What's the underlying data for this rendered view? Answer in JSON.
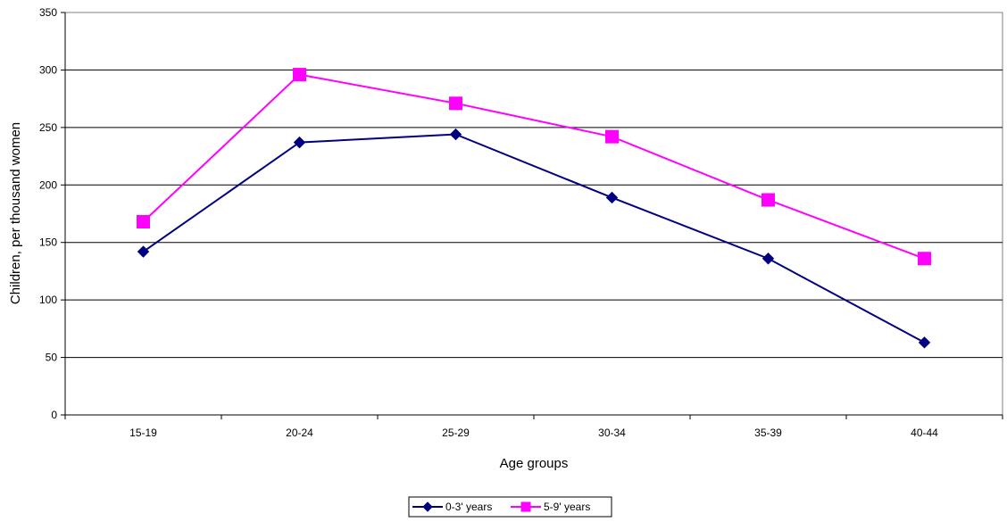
{
  "chart_data": {
    "type": "line",
    "title": "",
    "xlabel": "Age groups",
    "ylabel": "Children, per thousand women",
    "categories": [
      "15-19",
      "20-24",
      "25-29",
      "30-34",
      "35-39",
      "40-44"
    ],
    "ylim": [
      0,
      350
    ],
    "yticks": [
      0,
      50,
      100,
      150,
      200,
      250,
      300,
      350
    ],
    "grid": "horizontal",
    "legend_position": "bottom",
    "series": [
      {
        "name": "0-3' years",
        "color": "#000080",
        "marker": "diamond",
        "values": [
          142,
          237,
          244,
          189,
          136,
          63
        ]
      },
      {
        "name": "5-9' years",
        "color": "#FF00FF",
        "marker": "square",
        "values": [
          168,
          296,
          271,
          242,
          187,
          136
        ]
      }
    ]
  }
}
